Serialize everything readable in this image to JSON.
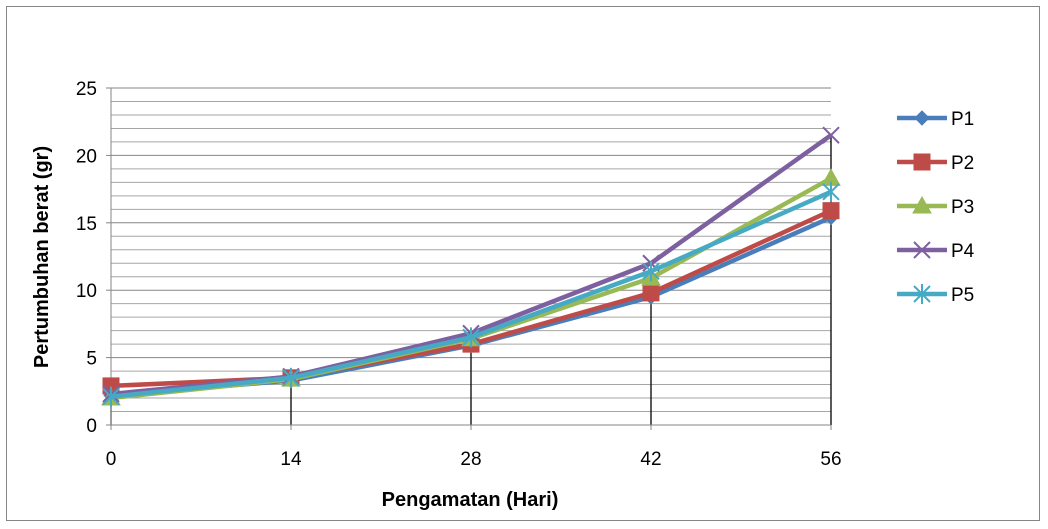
{
  "chart_data": {
    "type": "line",
    "title": "",
    "xlabel": "Pengamatan (Hari)",
    "ylabel": "Pertumbuhan berat (gr)",
    "categories": [
      "0",
      "14",
      "28",
      "42",
      "56"
    ],
    "ylim": [
      0,
      25
    ],
    "yticks": [
      0,
      5,
      10,
      15,
      20,
      25
    ],
    "grid": true,
    "legend_position": "right",
    "series": [
      {
        "name": "P1",
        "values": [
          2.2,
          3.3,
          5.9,
          9.5,
          15.4
        ],
        "color": "#4a7ebb",
        "marker": "diamond"
      },
      {
        "name": "P2",
        "values": [
          2.9,
          3.5,
          6.0,
          9.8,
          15.9
        ],
        "color": "#be4b48",
        "marker": "square"
      },
      {
        "name": "P3",
        "values": [
          2.0,
          3.4,
          6.4,
          10.9,
          18.3
        ],
        "color": "#98b954",
        "marker": "triangle"
      },
      {
        "name": "P4",
        "values": [
          2.3,
          3.6,
          6.8,
          12.0,
          21.5
        ],
        "color": "#7d60a0",
        "marker": "x"
      },
      {
        "name": "P5",
        "values": [
          2.1,
          3.5,
          6.5,
          11.4,
          17.3
        ],
        "color": "#46aac5",
        "marker": "star"
      }
    ]
  }
}
